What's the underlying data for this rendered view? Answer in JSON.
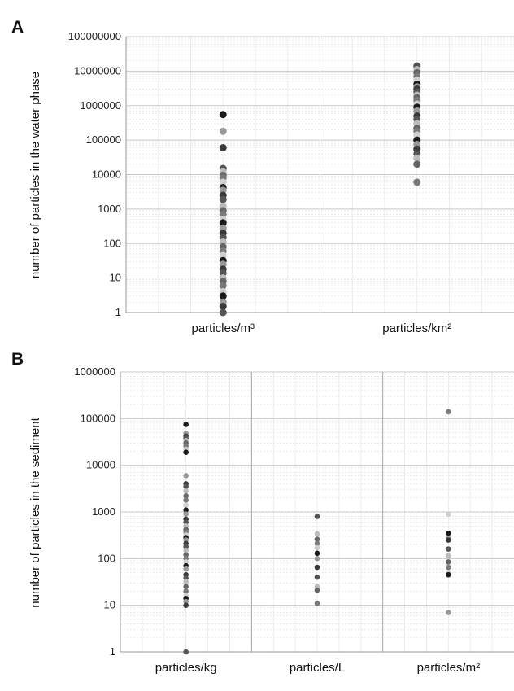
{
  "chart_data": [
    {
      "panel_label": "A",
      "type": "scatter",
      "ylabel": "number of particles in the water phase",
      "yscale": "log",
      "ylim": [
        1,
        100000000
      ],
      "y_ticks": [
        "1",
        "10",
        "100",
        "1000",
        "10000",
        "100000",
        "1000000",
        "10000000",
        "100000000"
      ],
      "categories": [
        "particles/m³",
        "particles/km²"
      ],
      "grid": true,
      "series": [
        {
          "category": "particles/m³",
          "values": [
            550000,
            180000,
            60000,
            15000,
            12000,
            9500,
            8000,
            6000,
            4200,
            3500,
            2500,
            1900,
            1200,
            900,
            700,
            500,
            400,
            280,
            200,
            150,
            110,
            80,
            60,
            45,
            32,
            25,
            18,
            14,
            10,
            8,
            6,
            4,
            3,
            2,
            1.5,
            1
          ]
        },
        {
          "category": "particles/km²",
          "values": [
            14000000,
            11000000,
            9000000,
            7000000,
            5500000,
            4200000,
            3500000,
            3000000,
            2500000,
            2000000,
            1700000,
            1400000,
            1100000,
            900000,
            700000,
            500000,
            400000,
            300000,
            220000,
            180000,
            140000,
            100000,
            75000,
            55000,
            40000,
            30000,
            20000,
            6000
          ]
        }
      ]
    },
    {
      "panel_label": "B",
      "type": "scatter",
      "ylabel": "number of particles in the sediment",
      "yscale": "log",
      "ylim": [
        1,
        1000000
      ],
      "y_ticks": [
        "1",
        "10",
        "100",
        "1000",
        "10000",
        "100000",
        "1000000"
      ],
      "categories": [
        "particles/kg",
        "particles/L",
        "particles/m²"
      ],
      "grid": true,
      "series": [
        {
          "category": "particles/kg",
          "values": [
            75000,
            48000,
            42000,
            38000,
            34000,
            30000,
            26000,
            22000,
            19000,
            6000,
            4000,
            3500,
            2800,
            2200,
            1800,
            1400,
            1100,
            900,
            700,
            600,
            500,
            420,
            370,
            320,
            280,
            250,
            210,
            180,
            150,
            120,
            100,
            85,
            70,
            60,
            45,
            38,
            32,
            25,
            20,
            16,
            14,
            12,
            10,
            1
          ]
        },
        {
          "category": "particles/L",
          "values": [
            800,
            340,
            260,
            210,
            170,
            130,
            100,
            65,
            40,
            25,
            21,
            11
          ]
        },
        {
          "category": "particles/m²",
          "values": [
            140000,
            900,
            350,
            270,
            250,
            160,
            115,
            85,
            65,
            50,
            45,
            7
          ]
        }
      ]
    }
  ]
}
